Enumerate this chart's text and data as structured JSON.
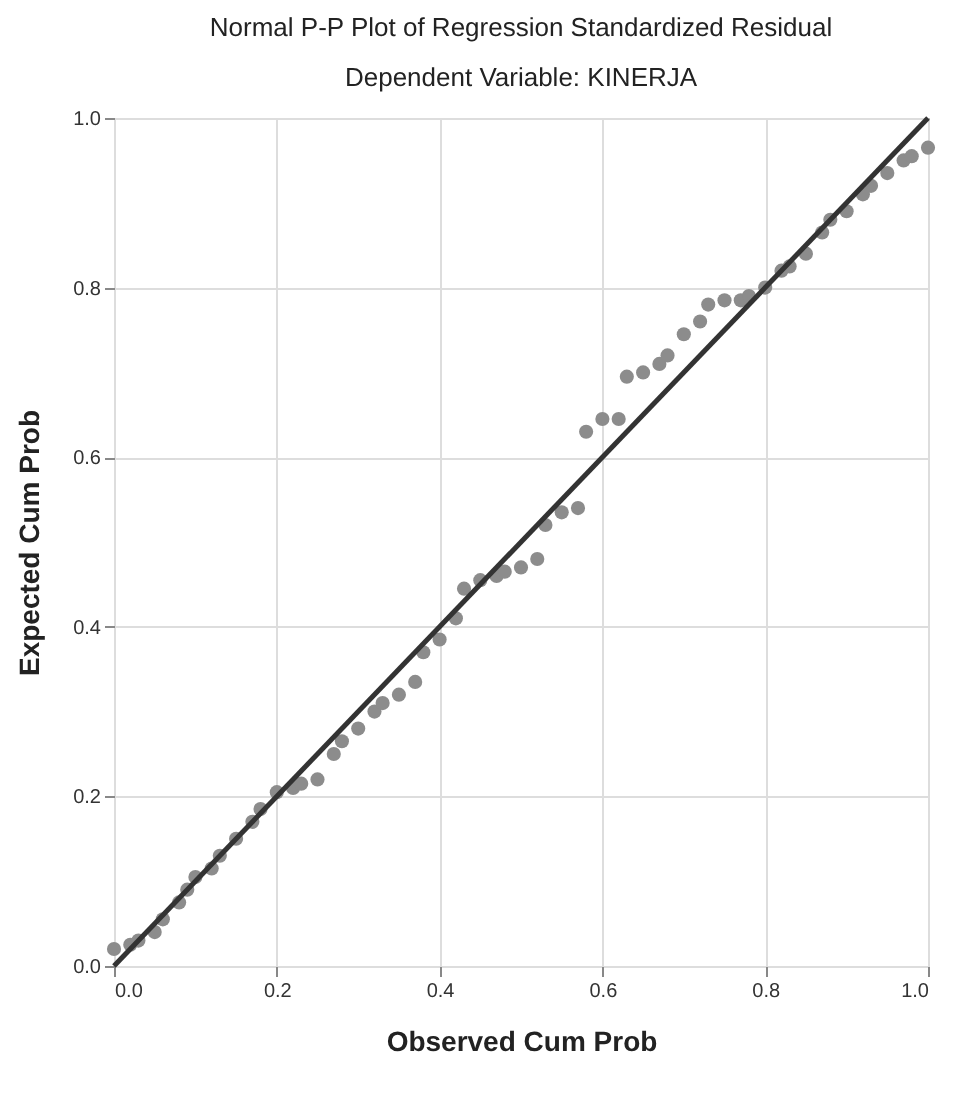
{
  "chart_data": {
    "type": "scatter",
    "title": "Normal P-P Plot of Regression Standardized Residual",
    "subtitle": "Dependent Variable: KINERJA",
    "xlabel": "Observed Cum Prob",
    "ylabel": "Expected Cum Prob",
    "xlim": [
      0,
      1
    ],
    "ylim": [
      0,
      1
    ],
    "xticks": [
      {
        "value": 0,
        "label": "0.0"
      },
      0.2,
      0.4,
      0.6,
      0.8,
      {
        "value": 1,
        "label": "1.0"
      }
    ],
    "yticks": [
      {
        "value": 0,
        "label": "0.0"
      },
      0.2,
      0.4,
      0.6,
      0.8,
      {
        "value": 1,
        "label": "1.0"
      }
    ],
    "grid": true,
    "series": [
      {
        "marker": "circle",
        "color": "#8c8c8c",
        "x": [
          0.0,
          0.02,
          0.03,
          0.05,
          0.06,
          0.08,
          0.09,
          0.1,
          0.12,
          0.13,
          0.15,
          0.17,
          0.18,
          0.2,
          0.22,
          0.23,
          0.25,
          0.27,
          0.28,
          0.3,
          0.32,
          0.33,
          0.35,
          0.37,
          0.38,
          0.4,
          0.42,
          0.43,
          0.45,
          0.47,
          0.48,
          0.5,
          0.52,
          0.53,
          0.55,
          0.57,
          0.58,
          0.6,
          0.62,
          0.63,
          0.65,
          0.67,
          0.68,
          0.7,
          0.72,
          0.73,
          0.75,
          0.77,
          0.78,
          0.8,
          0.82,
          0.83,
          0.85,
          0.87,
          0.88,
          0.9,
          0.92,
          0.93,
          0.95,
          0.97,
          0.98,
          1.0
        ],
        "values": [
          0.02,
          0.025,
          0.03,
          0.04,
          0.055,
          0.075,
          0.09,
          0.105,
          0.115,
          0.13,
          0.15,
          0.17,
          0.185,
          0.205,
          0.21,
          0.215,
          0.22,
          0.25,
          0.265,
          0.28,
          0.3,
          0.31,
          0.32,
          0.335,
          0.37,
          0.385,
          0.41,
          0.445,
          0.455,
          0.46,
          0.465,
          0.47,
          0.48,
          0.52,
          0.535,
          0.54,
          0.63,
          0.645,
          0.645,
          0.695,
          0.7,
          0.71,
          0.72,
          0.745,
          0.76,
          0.78,
          0.785,
          0.785,
          0.79,
          0.8,
          0.82,
          0.825,
          0.84,
          0.865,
          0.88,
          0.89,
          0.91,
          0.92,
          0.935,
          0.95,
          0.955,
          0.965
        ]
      },
      {
        "type": "line",
        "marker": "none",
        "color": "#333333",
        "x": [
          0,
          1
        ],
        "values": [
          0,
          1
        ]
      }
    ]
  }
}
